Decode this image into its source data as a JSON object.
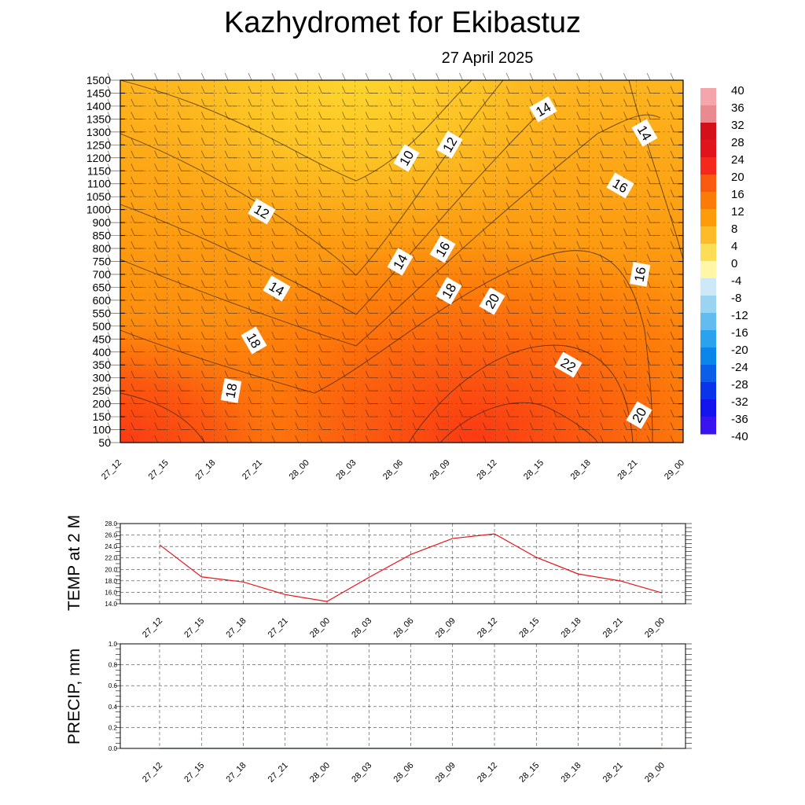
{
  "header": {
    "title": "Kazhydromet  for Ekibastuz",
    "date": "27 April 2025"
  },
  "chart_data": [
    {
      "type": "heatmap",
      "ylim": [
        50,
        1500
      ],
      "y_ticks": [
        "1500",
        "1450",
        "1400",
        "1350",
        "1300",
        "1250",
        "1200",
        "1150",
        "1100",
        "1050",
        "1000",
        "900",
        "850",
        "800",
        "750",
        "700",
        "650",
        "600",
        "550",
        "500",
        "450",
        "400",
        "350",
        "300",
        "250",
        "200",
        "150",
        "100",
        "50"
      ],
      "x_ticks": [
        "27_12",
        "27_15",
        "27_18",
        "27_21",
        "28_00",
        "28_03",
        "28_06",
        "28_09",
        "28_12",
        "28_15",
        "28_18",
        "28_21",
        "29_00"
      ],
      "colorbar": {
        "labels": [
          "40",
          "36",
          "32",
          "28",
          "24",
          "20",
          "16",
          "12",
          "8",
          "4",
          "0",
          "-4",
          "-8",
          "-12",
          "-16",
          "-20",
          "-24",
          "-28",
          "-32",
          "-36",
          "-40"
        ],
        "colors": [
          "#f4a6ac",
          "#e98a90",
          "#d4101a",
          "#e0141a",
          "#f5281e",
          "#fa5a10",
          "#fc7a08",
          "#fd9b0a",
          "#fdbb2a",
          "#fedd56",
          "#fff6a8",
          "#cde8f6",
          "#9ad4f2",
          "#62bcf0",
          "#2aa2ee",
          "#0a86ea",
          "#0a5ee8",
          "#0a34ea",
          "#1414ee",
          "#3a14f0",
          "#7a22ee"
        ]
      },
      "contour_labels": [
        {
          "text": "10"
        },
        {
          "text": "12"
        },
        {
          "text": "14"
        },
        {
          "text": "14"
        },
        {
          "text": "16"
        },
        {
          "text": "12"
        },
        {
          "text": "14"
        },
        {
          "text": "16"
        },
        {
          "text": "18"
        },
        {
          "text": "20"
        },
        {
          "text": "18"
        },
        {
          "text": "14"
        },
        {
          "text": "16"
        },
        {
          "text": "18"
        },
        {
          "text": "22"
        },
        {
          "text": "20"
        }
      ]
    },
    {
      "type": "line",
      "ylabel": "TEMP at 2 M",
      "ylim": [
        14,
        28
      ],
      "y_ticks": [
        "28.0",
        "26.0",
        "24.0",
        "22.0",
        "20.0",
        "18.0",
        "16.0",
        "14.0"
      ],
      "x": [
        "27_12",
        "27_15",
        "27_18",
        "27_21",
        "28_00",
        "28_03",
        "28_06",
        "28_09",
        "28_12",
        "28_15",
        "28_18",
        "28_21",
        "29_00"
      ],
      "series": [
        {
          "values": [
            24.3,
            18.7,
            17.8,
            15.6,
            14.4,
            18.6,
            22.6,
            25.4,
            26.2,
            22.1,
            19.2,
            18.0,
            15.9
          ],
          "color": "#e8141a"
        }
      ]
    },
    {
      "type": "line",
      "ylabel": "PRECIP, mm",
      "ylim": [
        0,
        1
      ],
      "y_ticks": [
        "1.0",
        "0.8",
        "0.6",
        "0.4",
        "0.2",
        "0.0"
      ],
      "x": [
        "27_12",
        "27_15",
        "27_18",
        "27_21",
        "28_00",
        "28_03",
        "28_06",
        "28_09",
        "28_12",
        "28_15",
        "28_18",
        "28_21",
        "29_00"
      ],
      "series": [
        {
          "values": [
            0,
            0,
            0,
            0,
            0,
            0,
            0,
            0,
            0,
            0,
            0,
            0,
            0
          ],
          "color": "#1a8a1a"
        }
      ]
    }
  ]
}
